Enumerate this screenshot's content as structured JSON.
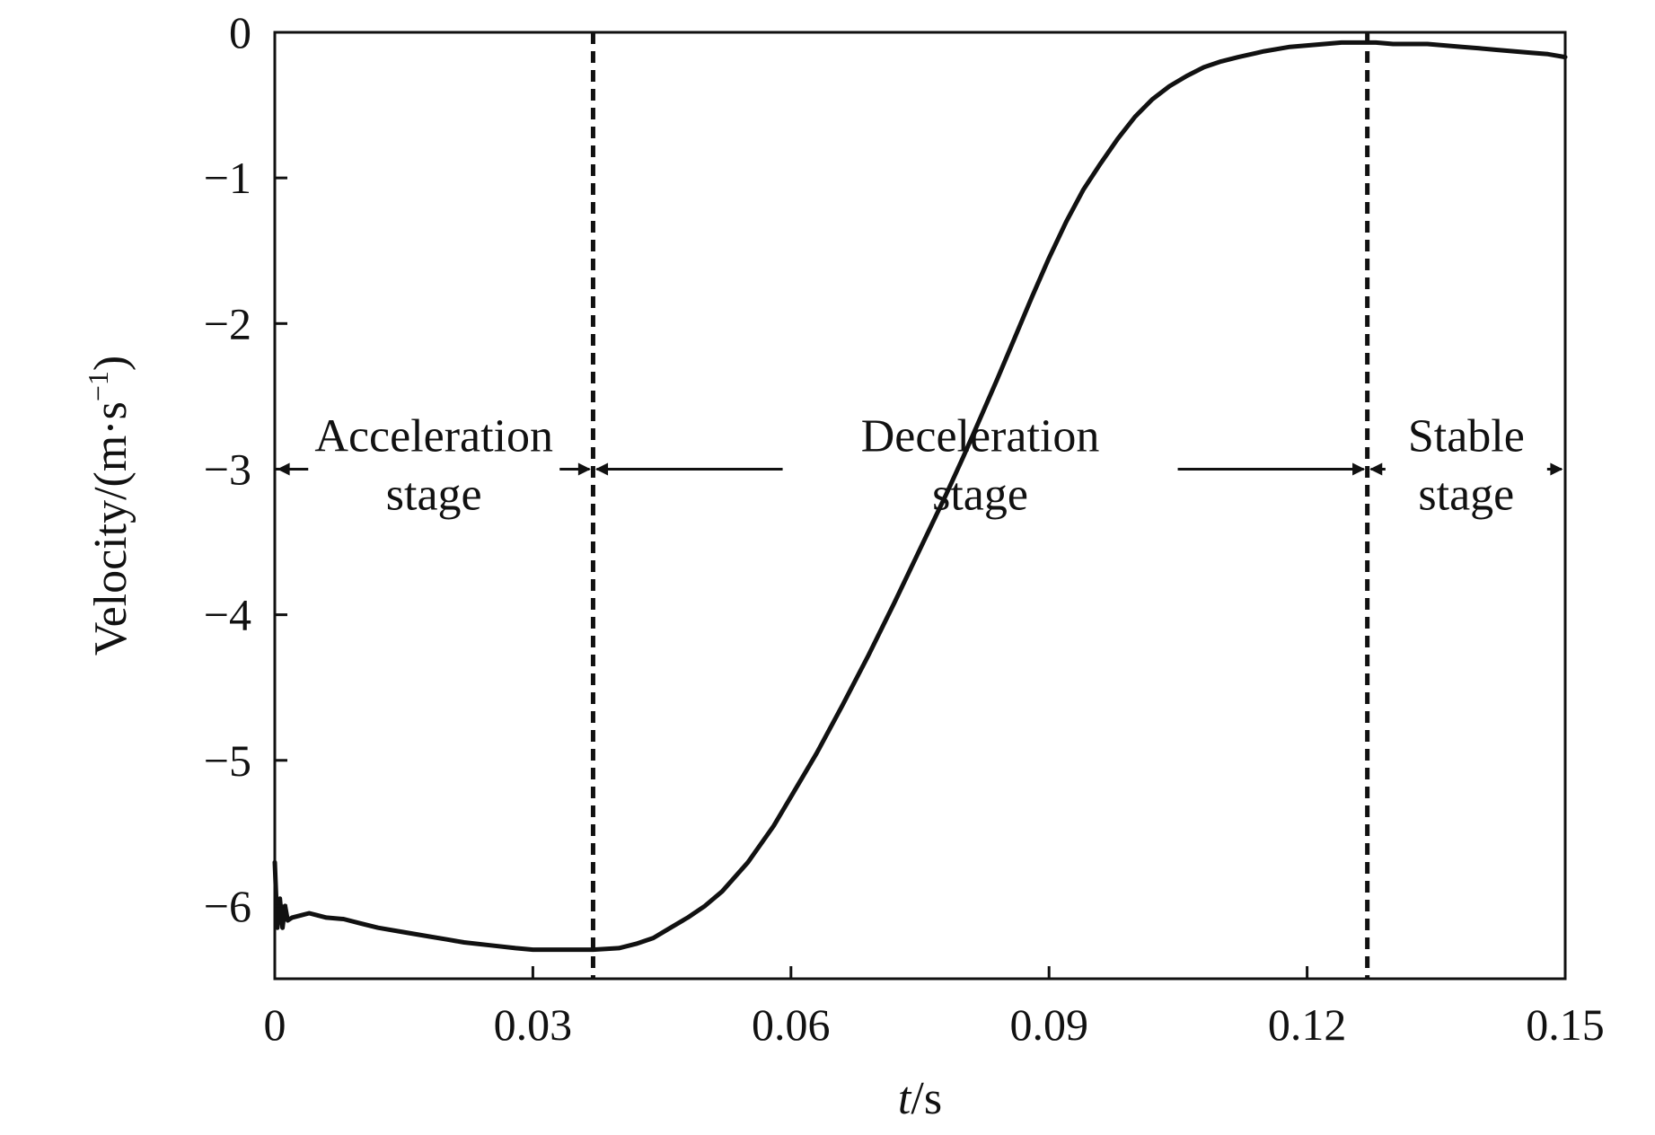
{
  "chart_data": {
    "type": "line",
    "title": "",
    "xlabel": {
      "italic": "t",
      "rest": "/s"
    },
    "ylabel": {
      "main": "Velocity/(m·s",
      "sup": "−1",
      "close": ")"
    },
    "xlim": [
      0,
      0.15
    ],
    "ylim": [
      -6.5,
      0
    ],
    "xticks": [
      {
        "value": 0,
        "label": "0"
      },
      {
        "value": 0.03,
        "label": "0.03"
      },
      {
        "value": 0.06,
        "label": "0.06"
      },
      {
        "value": 0.09,
        "label": "0.09"
      },
      {
        "value": 0.12,
        "label": "0.12"
      },
      {
        "value": 0.15,
        "label": "0.15"
      }
    ],
    "yticks": [
      {
        "value": 0,
        "label": "0"
      },
      {
        "value": -1,
        "label": "−1"
      },
      {
        "value": -2,
        "label": "−2"
      },
      {
        "value": -3,
        "label": "−3"
      },
      {
        "value": -4,
        "label": "−4"
      },
      {
        "value": -5,
        "label": "−5"
      },
      {
        "value": -6,
        "label": "−6"
      }
    ],
    "grid": false,
    "line_color": "#111111",
    "series": [
      {
        "x": [
          0,
          0.0003,
          0.0006,
          0.0009,
          0.0012,
          0.0015,
          0.002,
          0.004,
          0.006,
          0.008,
          0.01,
          0.012,
          0.015,
          0.018,
          0.02,
          0.022,
          0.025,
          0.028,
          0.03,
          0.033,
          0.036,
          0.037,
          0.04,
          0.042,
          0.044,
          0.046,
          0.048,
          0.05,
          0.052,
          0.055,
          0.058,
          0.06,
          0.063,
          0.066,
          0.069,
          0.072,
          0.075,
          0.078,
          0.08,
          0.082,
          0.084,
          0.086,
          0.088,
          0.09,
          0.092,
          0.094,
          0.096,
          0.098,
          0.1,
          0.102,
          0.104,
          0.106,
          0.108,
          0.11,
          0.112,
          0.115,
          0.118,
          0.12,
          0.122,
          0.124,
          0.126,
          0.128,
          0.13,
          0.132,
          0.134,
          0.136,
          0.138,
          0.14,
          0.142,
          0.144,
          0.146,
          0.148,
          0.15
        ],
        "y": [
          -5.7,
          -6.15,
          -5.95,
          -6.15,
          -6.0,
          -6.1,
          -6.08,
          -6.05,
          -6.08,
          -6.09,
          -6.12,
          -6.15,
          -6.18,
          -6.21,
          -6.23,
          -6.25,
          -6.27,
          -6.29,
          -6.3,
          -6.3,
          -6.3,
          -6.3,
          -6.29,
          -6.26,
          -6.22,
          -6.15,
          -6.08,
          -6.0,
          -5.9,
          -5.7,
          -5.45,
          -5.25,
          -4.95,
          -4.62,
          -4.28,
          -3.92,
          -3.55,
          -3.18,
          -2.92,
          -2.65,
          -2.38,
          -2.1,
          -1.82,
          -1.55,
          -1.3,
          -1.08,
          -0.9,
          -0.73,
          -0.58,
          -0.46,
          -0.37,
          -0.3,
          -0.24,
          -0.2,
          -0.17,
          -0.13,
          -0.1,
          -0.09,
          -0.08,
          -0.07,
          -0.07,
          -0.07,
          -0.08,
          -0.08,
          -0.08,
          -0.09,
          -0.1,
          -0.11,
          -0.12,
          -0.13,
          -0.14,
          -0.15,
          -0.17
        ]
      }
    ],
    "stage_boundaries": [
      0.037,
      0.127
    ],
    "arrow_level": -3,
    "stages": [
      {
        "line1": "Acceleration",
        "line2": "stage",
        "from": 0,
        "to": 0.037
      },
      {
        "line1": "Deceleration",
        "line2": "stage",
        "from": 0.037,
        "to": 0.127
      },
      {
        "line1": "Stable",
        "line2": "stage",
        "from": 0.127,
        "to": 0.15
      }
    ]
  }
}
